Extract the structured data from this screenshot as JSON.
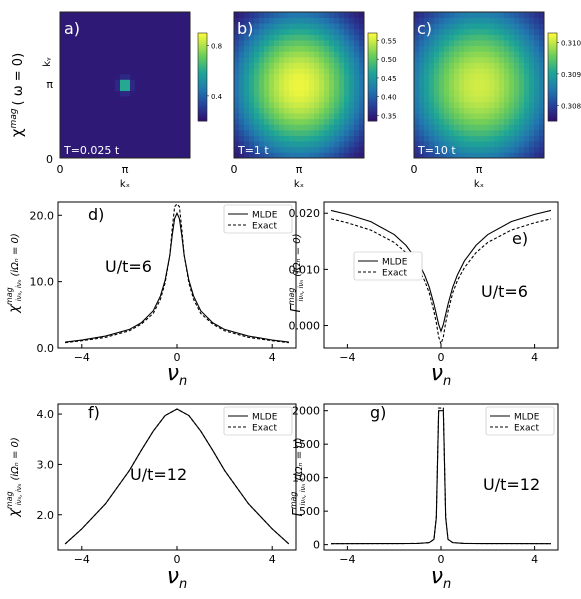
{
  "heatmap_row": {
    "ylabel": "χ",
    "ylabel_sup": "mag",
    "ylabel_tail": "( ω = 0)",
    "x_tick_labels": [
      "0",
      "π",
      "0",
      "π",
      "0",
      "π"
    ],
    "xlabel": "kₓ",
    "colors": {
      "low": "#30206a",
      "high": "#ffff40"
    }
  },
  "line_row_labels": {
    "nu_label": "ν",
    "nu_sub": "n",
    "chi_label": "χ",
    "gamma_label": "Γ",
    "mag_sup": "mag",
    "sub_indices": "iνₙ, iνₙ",
    "omega_tail": "(iΩₙ = 0)"
  },
  "chart_data": [
    {
      "type": "heatmap",
      "panel_label": "a)",
      "annotation": "T=0.025 t",
      "xlabel": "kₓ",
      "ylabel": "kᵧ",
      "x_ticks": [
        "0",
        "π"
      ],
      "y_ticks": [
        "0",
        "π"
      ],
      "colorbar_ticks": [
        "0.8",
        "0.4"
      ],
      "colorbar_values": [
        0.8,
        0.4
      ],
      "vmin": 0.2,
      "vmax": 0.9,
      "peak": 0.9,
      "background": 0.22,
      "width": 0.05
    },
    {
      "type": "heatmap",
      "panel_label": "b)",
      "annotation": "T=1 t",
      "xlabel": "kₓ",
      "x_ticks": [
        "π"
      ],
      "colorbar_ticks": [
        "0.55",
        "0.50",
        "0.45",
        "0.40",
        "0.35"
      ],
      "colorbar_values": [
        0.55,
        0.5,
        0.45,
        0.4,
        0.35
      ],
      "vmin": 0.335,
      "vmax": 0.57,
      "peak": 0.565,
      "background": 0.34,
      "width": 0.55
    },
    {
      "type": "heatmap",
      "panel_label": "c)",
      "annotation": "T=10 t",
      "xlabel": "kₓ",
      "x_ticks": [
        "π"
      ],
      "colorbar_ticks": [
        "0.310",
        "0.309",
        "0.308"
      ],
      "colorbar_values": [
        0.31,
        0.309,
        0.308
      ],
      "vmin": 0.3075,
      "vmax": 0.3103,
      "peak": 0.3101,
      "background": 0.3077,
      "width": 0.6
    },
    {
      "type": "line",
      "panel_label": "d)",
      "annotation": "U/t=6",
      "xlim": [
        -5,
        5
      ],
      "ylim": [
        0,
        22
      ],
      "x_ticks": [
        -4,
        0,
        4
      ],
      "y_ticks": [
        0.0,
        10.0,
        20.0
      ],
      "y_tick_labels": [
        "0.0",
        "10.0",
        "20.0"
      ],
      "legend_placement": "top-right",
      "series": [
        {
          "name": "MLDE",
          "style": "solid",
          "x": [
            -4.7,
            -4.0,
            -3.0,
            -2.0,
            -1.5,
            -1.0,
            -0.7,
            -0.5,
            -0.3,
            -0.2,
            -0.1,
            0.0,
            0.1,
            0.2,
            0.3,
            0.5,
            0.7,
            1.0,
            1.5,
            2.0,
            3.0,
            4.0,
            4.7
          ],
          "y": [
            0.9,
            1.2,
            1.8,
            2.8,
            3.8,
            5.6,
            7.8,
            10.2,
            14.0,
            17.0,
            19.5,
            20.3,
            19.5,
            17.0,
            14.0,
            10.2,
            7.8,
            5.6,
            3.8,
            2.8,
            1.8,
            1.2,
            0.9
          ]
        },
        {
          "name": "Exact",
          "style": "dashed",
          "x": [
            -4.7,
            -4.0,
            -3.0,
            -2.0,
            -1.5,
            -1.0,
            -0.7,
            -0.5,
            -0.3,
            -0.2,
            -0.1,
            0.0,
            0.1,
            0.2,
            0.3,
            0.5,
            0.7,
            1.0,
            1.5,
            2.0,
            3.0,
            4.0,
            4.7
          ],
          "y": [
            0.8,
            1.1,
            1.6,
            2.6,
            3.6,
            5.2,
            7.3,
            9.8,
            14.0,
            18.0,
            21.3,
            21.7,
            21.3,
            18.0,
            14.0,
            9.8,
            7.3,
            5.2,
            3.6,
            2.6,
            1.6,
            1.1,
            0.8
          ]
        }
      ]
    },
    {
      "type": "line",
      "panel_label": "e)",
      "annotation": "U/t=6",
      "xlim": [
        -5,
        5
      ],
      "ylim": [
        -0.004,
        0.022
      ],
      "x_ticks": [
        -4,
        0,
        4
      ],
      "y_ticks": [
        0.0,
        0.01,
        0.02
      ],
      "y_tick_labels": [
        "0.000",
        "0.010",
        "0.020"
      ],
      "legend_placement": "center-left",
      "series": [
        {
          "name": "MLDE",
          "style": "solid",
          "x": [
            -4.7,
            -4.0,
            -3.0,
            -2.0,
            -1.5,
            -1.0,
            -0.7,
            -0.5,
            -0.3,
            -0.2,
            -0.1,
            0.0,
            0.1,
            0.2,
            0.3,
            0.5,
            0.7,
            1.0,
            1.5,
            2.0,
            3.0,
            4.0,
            4.7
          ],
          "y": [
            0.0205,
            0.0198,
            0.0185,
            0.0162,
            0.0143,
            0.0115,
            0.009,
            0.0068,
            0.0038,
            0.002,
            0.0002,
            -0.001,
            0.0002,
            0.002,
            0.0038,
            0.0068,
            0.009,
            0.0115,
            0.0143,
            0.0162,
            0.0185,
            0.0198,
            0.0205
          ]
        },
        {
          "name": "Exact",
          "style": "dashed",
          "x": [
            -4.7,
            -4.0,
            -3.0,
            -2.0,
            -1.5,
            -1.0,
            -0.7,
            -0.5,
            -0.3,
            -0.2,
            -0.1,
            0.0,
            0.1,
            0.2,
            0.3,
            0.5,
            0.7,
            1.0,
            1.5,
            2.0,
            3.0,
            4.0,
            4.7
          ],
          "y": [
            0.019,
            0.0183,
            0.017,
            0.0148,
            0.013,
            0.0103,
            0.008,
            0.0058,
            0.0025,
            0.0005,
            -0.002,
            -0.0033,
            -0.002,
            0.0005,
            0.0025,
            0.0058,
            0.008,
            0.0103,
            0.013,
            0.0148,
            0.017,
            0.0183,
            0.019
          ]
        }
      ]
    },
    {
      "type": "line",
      "panel_label": "f)",
      "annotation": "U/t=12",
      "xlim": [
        -5,
        5
      ],
      "ylim": [
        1.3,
        4.2
      ],
      "x_ticks": [
        -4,
        0,
        4
      ],
      "y_ticks": [
        2.0,
        3.0,
        4.0
      ],
      "y_tick_labels": [
        "2.0",
        "3.0",
        "4.0"
      ],
      "legend_placement": "top-right",
      "series": [
        {
          "name": "MLDE",
          "style": "solid",
          "x": [
            -4.7,
            -4.0,
            -3.0,
            -2.0,
            -1.5,
            -1.0,
            -0.5,
            0.0,
            0.5,
            1.0,
            1.5,
            2.0,
            3.0,
            4.0,
            4.7
          ],
          "y": [
            1.42,
            1.72,
            2.22,
            2.88,
            3.28,
            3.66,
            3.97,
            4.1,
            3.97,
            3.66,
            3.28,
            2.88,
            2.22,
            1.72,
            1.42
          ]
        },
        {
          "name": "Exact",
          "style": "dashed",
          "x": [
            -4.7,
            -4.0,
            -3.0,
            -2.0,
            -1.5,
            -1.0,
            -0.5,
            0.0,
            0.5,
            1.0,
            1.5,
            2.0,
            3.0,
            4.0,
            4.7
          ],
          "y": [
            1.42,
            1.72,
            2.22,
            2.88,
            3.28,
            3.66,
            3.97,
            4.1,
            3.97,
            3.66,
            3.28,
            2.88,
            2.22,
            1.72,
            1.42
          ]
        }
      ]
    },
    {
      "type": "line",
      "panel_label": "g)",
      "annotation": "U/t=12",
      "xlim": [
        -5,
        5
      ],
      "ylim": [
        -80,
        2100
      ],
      "x_ticks": [
        -4,
        0,
        4
      ],
      "y_ticks": [
        0,
        500,
        1000,
        1500,
        2000
      ],
      "y_tick_labels": [
        "0",
        "500",
        "1000",
        "1500",
        "2000"
      ],
      "legend_placement": "top-right",
      "series": [
        {
          "name": "MLDE",
          "style": "solid",
          "x": [
            -4.7,
            -2.0,
            -1.0,
            -0.5,
            -0.3,
            -0.2,
            -0.1,
            0.0,
            0.1,
            0.2,
            0.3,
            0.5,
            1.0,
            2.0,
            4.7
          ],
          "y": [
            15,
            16,
            18,
            30,
            80,
            400,
            2000,
            2000,
            2000,
            400,
            80,
            30,
            18,
            16,
            15
          ]
        },
        {
          "name": "Exact",
          "style": "dashed",
          "x": [
            -4.7,
            -2.0,
            -1.0,
            -0.5,
            -0.3,
            -0.2,
            -0.1,
            0.0,
            0.1,
            0.2,
            0.3,
            0.5,
            1.0,
            2.0,
            4.7
          ],
          "y": [
            15,
            16,
            18,
            30,
            80,
            420,
            2040,
            2040,
            2040,
            420,
            80,
            30,
            18,
            16,
            15
          ]
        }
      ]
    }
  ]
}
